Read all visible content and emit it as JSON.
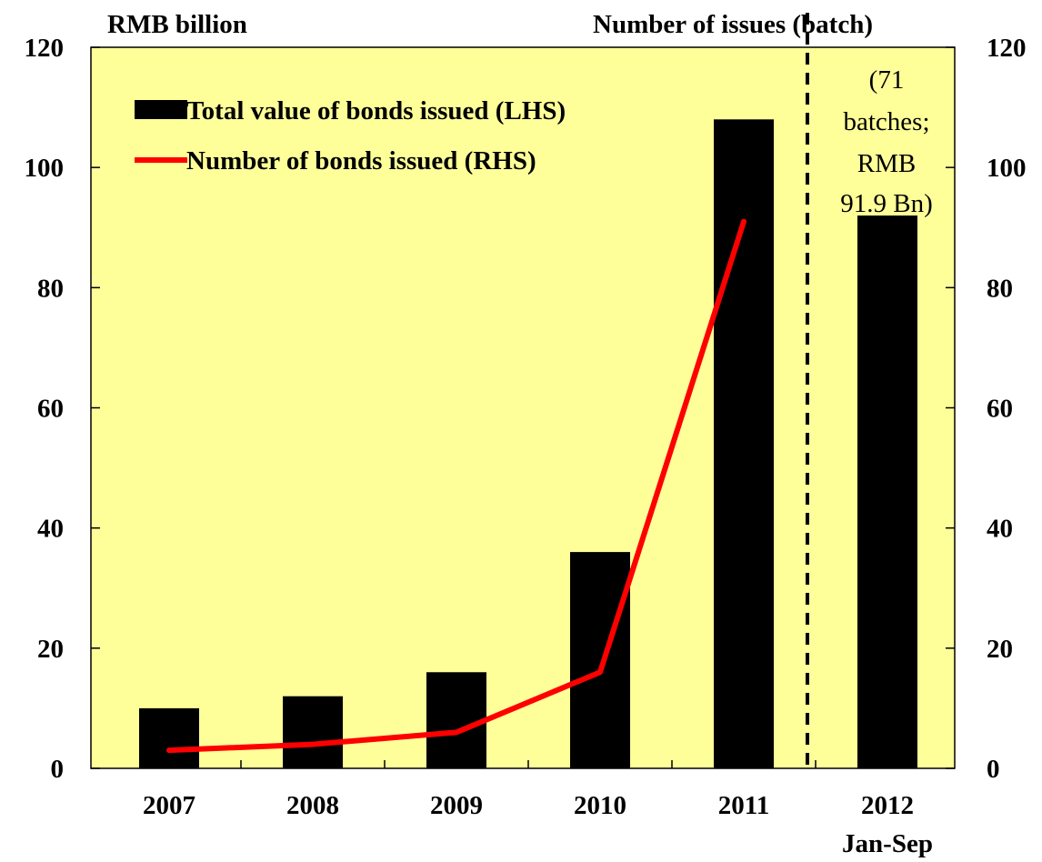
{
  "chart_data": {
    "type": "bar",
    "left_axis_title": "RMB billion",
    "right_axis_title": "Number of issues (batch)",
    "categories": [
      "2007",
      "2008",
      "2009",
      "2010",
      "2011",
      "2012"
    ],
    "category_sublabels": [
      "",
      "",
      "",
      "",
      "",
      "Jan-Sep"
    ],
    "left_ylim": [
      0,
      120
    ],
    "right_ylim": [
      0,
      120
    ],
    "left_ticks": [
      "0",
      "20",
      "40",
      "60",
      "80",
      "100",
      "120"
    ],
    "right_ticks": [
      "0",
      "20",
      "40",
      "60",
      "80",
      "100",
      "120"
    ],
    "series": [
      {
        "name": "Total value of bonds issued (LHS)",
        "type": "bar",
        "axis": "left",
        "values": [
          10,
          12,
          16,
          36,
          108,
          92
        ]
      },
      {
        "name": "Number of bonds issued (RHS)",
        "type": "line",
        "axis": "right",
        "values": [
          3,
          4,
          6,
          16,
          91,
          null
        ]
      }
    ],
    "annotation_lines": [
      "(71",
      "batches;",
      "RMB",
      "91.9 Bn)"
    ],
    "separator": "dashed vertical line between 2011 and 2012",
    "legend_position": "top-left",
    "grid": false,
    "colors": {
      "plot_background": "#ffff99",
      "bars": "#000000",
      "line": "#ff0000"
    }
  }
}
